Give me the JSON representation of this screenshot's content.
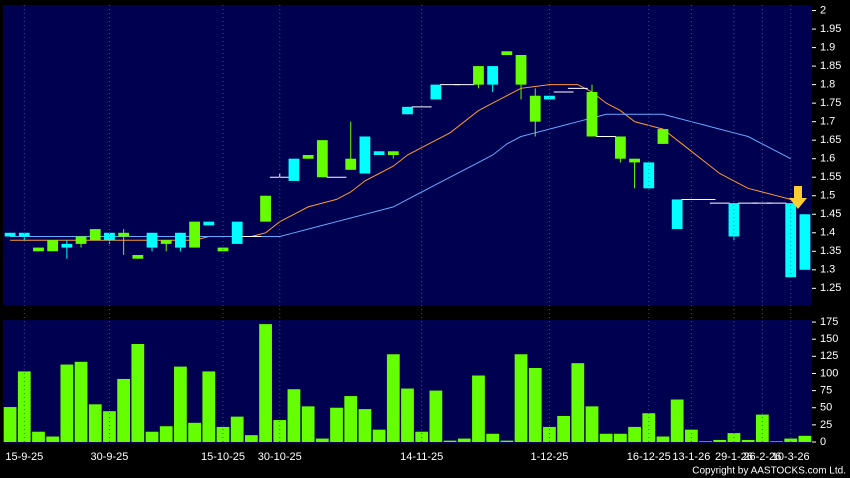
{
  "chart_data": [
    {
      "type": "candlestick",
      "open": [
        1.4,
        1.4,
        1.35,
        1.35,
        1.37,
        1.37,
        1.38,
        1.4,
        1.39,
        1.33,
        1.4,
        1.37,
        1.4,
        1.36,
        1.43,
        1.35,
        1.43,
        1.39,
        1.43,
        1.55,
        1.6,
        1.6,
        1.55,
        1.55,
        1.57,
        1.66,
        1.62,
        1.61,
        1.74,
        1.74,
        1.8,
        1.8,
        1.8,
        1.8,
        1.85,
        1.88,
        1.8,
        1.7,
        1.77,
        1.78,
        1.79,
        1.66,
        1.66,
        1.6,
        1.59,
        1.59,
        1.64,
        1.49,
        1.49,
        1.49,
        1.48,
        1.48,
        1.48,
        1.48,
        1.48,
        1.48,
        1.45
      ],
      "high": [
        1.4,
        1.4,
        1.36,
        1.38,
        1.38,
        1.39,
        1.41,
        1.4,
        1.41,
        1.34,
        1.4,
        1.38,
        1.4,
        1.43,
        1.43,
        1.36,
        1.43,
        1.39,
        1.5,
        1.56,
        1.6,
        1.61,
        1.65,
        1.55,
        1.7,
        1.66,
        1.62,
        1.62,
        1.74,
        1.74,
        1.8,
        1.8,
        1.8,
        1.85,
        1.85,
        1.89,
        1.88,
        1.79,
        1.77,
        1.78,
        1.79,
        1.8,
        1.66,
        1.66,
        1.6,
        1.59,
        1.68,
        1.49,
        1.49,
        1.49,
        1.48,
        1.48,
        1.48,
        1.48,
        1.48,
        1.48,
        1.45
      ],
      "low": [
        1.39,
        1.38,
        1.35,
        1.35,
        1.33,
        1.36,
        1.38,
        1.37,
        1.34,
        1.33,
        1.35,
        1.35,
        1.35,
        1.36,
        1.42,
        1.35,
        1.37,
        1.39,
        1.43,
        1.55,
        1.54,
        1.6,
        1.55,
        1.55,
        1.57,
        1.56,
        1.61,
        1.6,
        1.72,
        1.74,
        1.76,
        1.8,
        1.8,
        1.79,
        1.78,
        1.88,
        1.76,
        1.66,
        1.76,
        1.78,
        1.79,
        1.66,
        1.66,
        1.59,
        1.52,
        1.52,
        1.64,
        1.41,
        1.49,
        1.49,
        1.48,
        1.38,
        1.48,
        1.48,
        1.48,
        1.28,
        1.3
      ],
      "close": [
        1.39,
        1.39,
        1.36,
        1.38,
        1.36,
        1.39,
        1.41,
        1.38,
        1.4,
        1.34,
        1.36,
        1.38,
        1.36,
        1.43,
        1.42,
        1.36,
        1.37,
        1.39,
        1.5,
        1.55,
        1.54,
        1.61,
        1.65,
        1.55,
        1.6,
        1.56,
        1.61,
        1.62,
        1.72,
        1.74,
        1.76,
        1.8,
        1.8,
        1.85,
        1.8,
        1.89,
        1.88,
        1.77,
        1.76,
        1.78,
        1.79,
        1.78,
        1.66,
        1.66,
        1.6,
        1.52,
        1.68,
        1.41,
        1.49,
        1.49,
        1.48,
        1.39,
        1.48,
        1.48,
        1.48,
        1.28,
        1.3
      ],
      "up_color": "#66ff00",
      "down_color": "#00ffff",
      "doji_color": "#ffffff",
      "lines": [
        {
          "color": "#ff9933",
          "values": [
            1.38,
            1.38,
            1.38,
            1.38,
            1.38,
            1.38,
            1.38,
            1.38,
            1.38,
            1.38,
            1.38,
            1.38,
            1.38,
            1.38,
            1.39,
            1.39,
            1.39,
            1.39,
            1.4,
            1.43,
            1.45,
            1.47,
            1.48,
            1.49,
            1.51,
            1.54,
            1.56,
            1.58,
            1.61,
            1.63,
            1.65,
            1.67,
            1.7,
            1.73,
            1.75,
            1.77,
            1.79,
            1.795,
            1.8,
            1.8,
            1.8,
            1.78,
            1.75,
            1.73,
            1.7,
            1.69,
            1.68,
            1.65,
            1.62,
            1.59,
            1.56,
            1.54,
            1.52,
            1.51,
            1.5,
            1.49,
            null
          ]
        },
        {
          "color": "#66aaff",
          "values": [
            1.39,
            1.39,
            1.39,
            1.39,
            1.39,
            1.39,
            1.39,
            1.39,
            1.39,
            1.39,
            1.39,
            1.39,
            1.39,
            1.39,
            1.39,
            1.39,
            1.39,
            1.39,
            1.39,
            1.39,
            1.4,
            1.41,
            1.42,
            1.43,
            1.44,
            1.45,
            1.46,
            1.47,
            1.49,
            1.51,
            1.53,
            1.55,
            1.57,
            1.59,
            1.61,
            1.64,
            1.66,
            1.67,
            1.68,
            1.69,
            1.7,
            1.71,
            1.72,
            1.72,
            1.72,
            1.72,
            1.72,
            1.71,
            1.7,
            1.69,
            1.68,
            1.67,
            1.66,
            1.64,
            1.62,
            1.6,
            null
          ]
        }
      ],
      "ylim": [
        1.205,
        2.015
      ],
      "yticks": [
        1.25,
        1.3,
        1.35,
        1.4,
        1.45,
        1.5,
        1.55,
        1.6,
        1.65,
        1.7,
        1.75,
        1.8,
        1.85,
        1.9,
        1.95,
        2
      ]
    },
    {
      "type": "bar",
      "categories": [
        null,
        "15-9-25",
        null,
        null,
        null,
        null,
        null,
        "30-9-25",
        null,
        null,
        null,
        null,
        null,
        null,
        null,
        "15-10-25",
        null,
        null,
        null,
        "30-10-25",
        null,
        null,
        null,
        null,
        null,
        null,
        null,
        null,
        null,
        "14-11-25",
        null,
        null,
        null,
        null,
        null,
        null,
        null,
        null,
        "1-12-25",
        null,
        null,
        null,
        null,
        null,
        null,
        "16-12-25",
        null,
        null,
        "13-1-26",
        null,
        null,
        "29-1-26",
        null,
        "26-2-26",
        null,
        "10-3-26",
        null
      ],
      "values": [
        51,
        103,
        15,
        8,
        113,
        117,
        55,
        45,
        92,
        143,
        15,
        23,
        110,
        28,
        103,
        22,
        37,
        10,
        172,
        32,
        77,
        52,
        5,
        50,
        67,
        48,
        18,
        128,
        78,
        15,
        75,
        2,
        5,
        97,
        12,
        2,
        128,
        108,
        22,
        38,
        115,
        52,
        12,
        12,
        22,
        42,
        8,
        62,
        18,
        1,
        3,
        13,
        3,
        40,
        1,
        5,
        9
      ],
      "color": "#66ff00",
      "ylim": [
        0,
        178
      ],
      "yticks": [
        0,
        25,
        50,
        75,
        100,
        125,
        150,
        175
      ]
    }
  ],
  "copyright": "Copyright by AASTOCKS.com Ltd."
}
